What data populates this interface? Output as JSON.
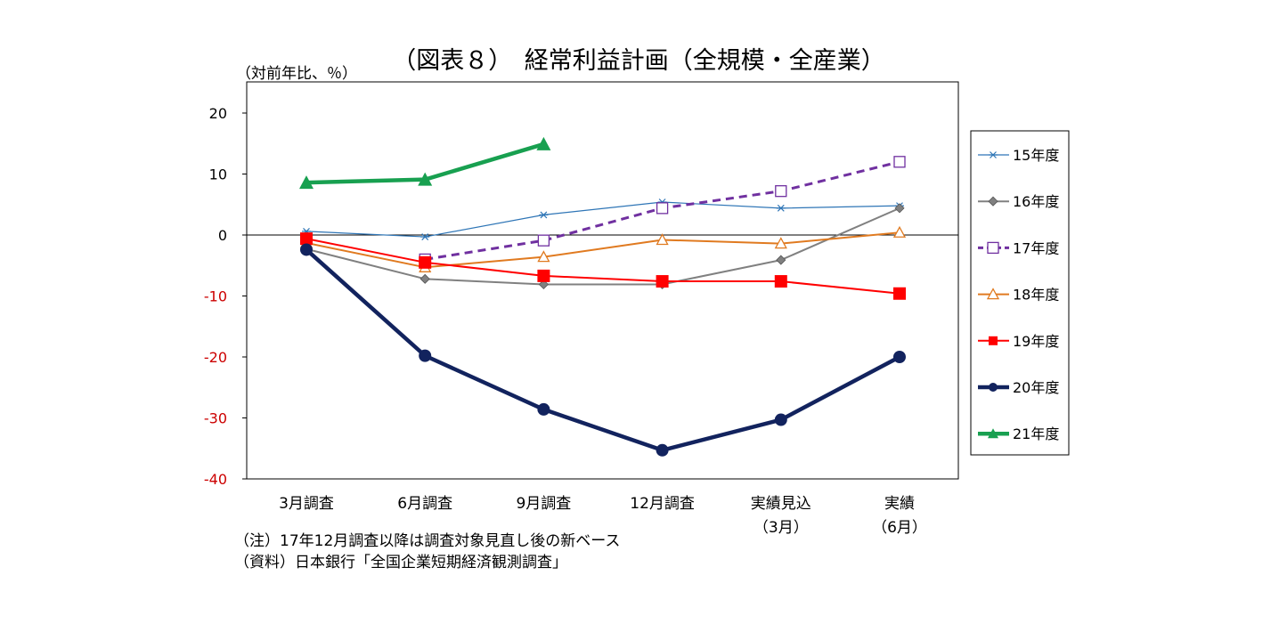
{
  "chart_data": {
    "type": "line",
    "title": "（図表８）　経常利益計画（全規模・全産業）",
    "ylabel": "（対前年比、％）",
    "xlabel": "",
    "ylim": [
      -40,
      20
    ],
    "yticks": [
      20,
      10,
      0,
      -10,
      -20,
      -30,
      -40
    ],
    "negative_tick_color": "#cc0000",
    "grid": false,
    "legend_position": "right",
    "categories": [
      [
        "3月調査"
      ],
      [
        "6月調査"
      ],
      [
        "9月調査"
      ],
      [
        "12月調査"
      ],
      [
        "実績見込",
        "（3月）"
      ],
      [
        "実績",
        "（6月）"
      ]
    ],
    "series": [
      {
        "name": "15年度",
        "color": "#2e75b6",
        "marker": "asterisk",
        "dash": "solid",
        "values": [
          0.6,
          -0.3,
          3.3,
          5.4,
          4.4,
          4.8
        ]
      },
      {
        "name": "16年度",
        "color": "#808080",
        "marker": "diamond",
        "dash": "solid",
        "values": [
          -2.3,
          -7.2,
          -8.1,
          -8.1,
          -4.1,
          4.4
        ]
      },
      {
        "name": "17年度",
        "color": "#7030a0",
        "marker": "square-open",
        "dash": "dashed",
        "values": [
          null,
          -4.0,
          -0.9,
          4.4,
          7.2,
          12.0
        ]
      },
      {
        "name": "18年度",
        "color": "#e07a20",
        "marker": "triangle-open",
        "dash": "solid",
        "values": [
          -1.3,
          -5.3,
          -3.6,
          -0.8,
          -1.4,
          0.4
        ]
      },
      {
        "name": "19年度",
        "color": "#ff0000",
        "marker": "square",
        "dash": "solid",
        "values": [
          -0.6,
          -4.5,
          -6.7,
          -7.6,
          -7.6,
          -9.6
        ]
      },
      {
        "name": "20年度",
        "color": "#12235e",
        "marker": "circle",
        "dash": "solid",
        "values": [
          -2.4,
          -19.8,
          -28.6,
          -35.3,
          -30.3,
          -20.0
        ]
      },
      {
        "name": "21年度",
        "color": "#18a050",
        "marker": "triangle",
        "dash": "solid",
        "values": [
          8.6,
          9.1,
          14.9,
          null,
          null,
          null
        ]
      }
    ]
  },
  "notes": [
    "（注）17年12月調査以降は調査対象見直し後の新ベース",
    "（資料）日本銀行「全国企業短期経済観測調査」"
  ]
}
